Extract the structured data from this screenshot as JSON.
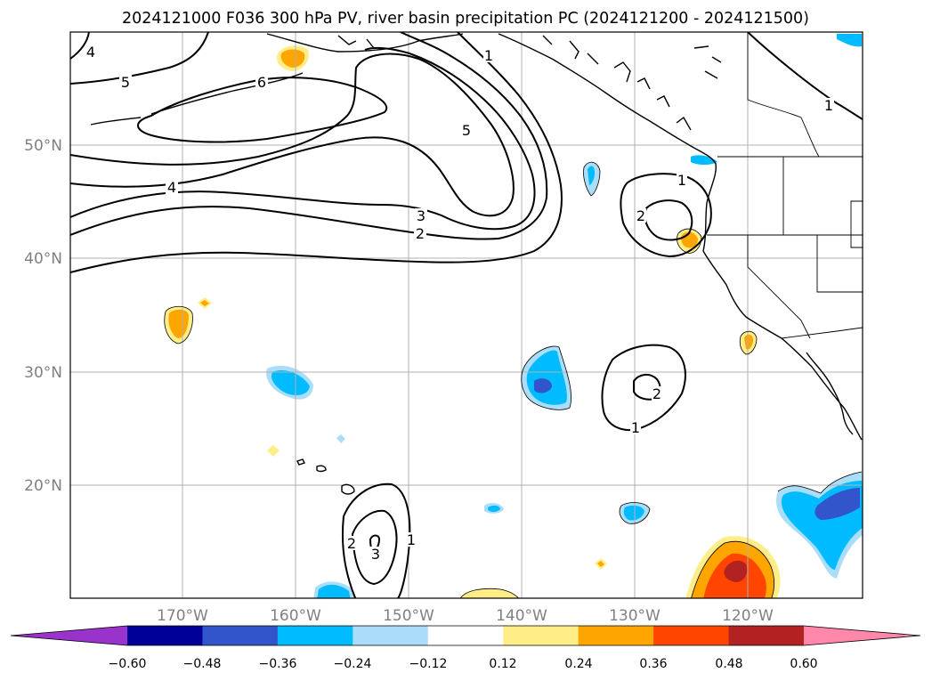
{
  "title": "2024121000 F036 300 hPa PV, river basin precipitation PC (2024121200 - 2024121500)",
  "axes": {
    "x_ticks": [
      "170°W",
      "160°W",
      "150°W",
      "140°W",
      "130°W",
      "120°W"
    ],
    "y_ticks": [
      "50°N",
      "40°N",
      "30°N",
      "20°N"
    ]
  },
  "colorbar": {
    "ticks": [
      "−0.60",
      "−0.48",
      "−0.36",
      "−0.24",
      "−0.12",
      "0.12",
      "0.24",
      "0.36",
      "0.48",
      "0.60"
    ],
    "colors": [
      "#9933cc",
      "#000099",
      "#3355cc",
      "#00bbff",
      "#aaddf8",
      "#ffffff",
      "#ffee88",
      "#ffa500",
      "#ff4500",
      "#b22222",
      "#ff88aa"
    ]
  },
  "contour_labels": [
    {
      "id": "pv-4-west",
      "text": "4"
    },
    {
      "id": "pv-5-west",
      "text": "5"
    },
    {
      "id": "pv-6",
      "text": "6"
    },
    {
      "id": "pv-1-north",
      "text": "1"
    },
    {
      "id": "pv-5-trough",
      "text": "5"
    },
    {
      "id": "pv-4-mid",
      "text": "4"
    },
    {
      "id": "pv-3-trough",
      "text": "3"
    },
    {
      "id": "pv-2-trough",
      "text": "2"
    },
    {
      "id": "pv-1-canada",
      "text": "1"
    },
    {
      "id": "pv-1-oregon",
      "text": "1"
    },
    {
      "id": "pv-2-oregon",
      "text": "2"
    },
    {
      "id": "pv-1-low",
      "text": "1"
    },
    {
      "id": "pv-2-low",
      "text": "2"
    },
    {
      "id": "pv-1-hawaii",
      "text": "1"
    },
    {
      "id": "pv-2-hawaii",
      "text": "2"
    },
    {
      "id": "pv-3-hawaii",
      "text": "3"
    }
  ]
}
